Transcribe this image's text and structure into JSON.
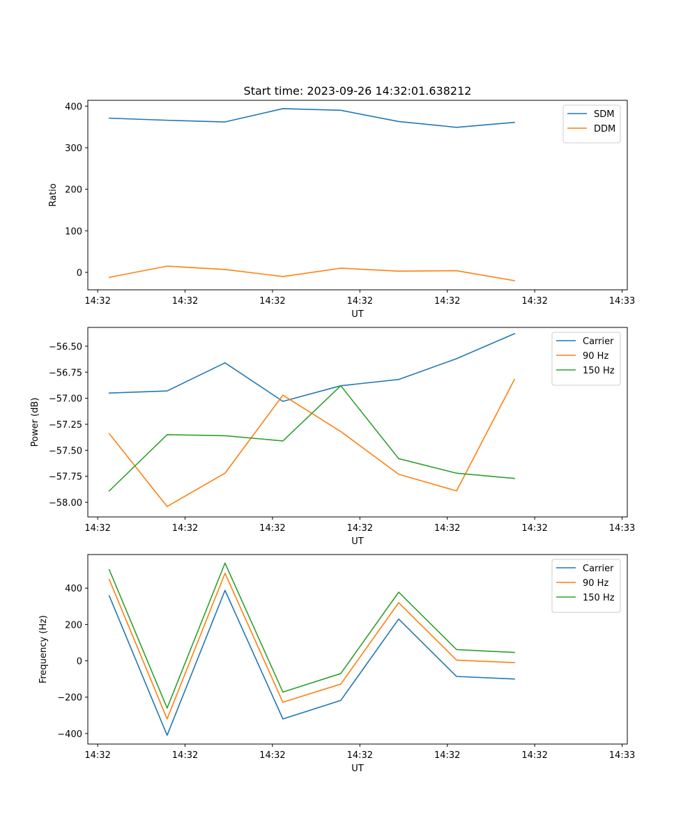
{
  "figure": {
    "title": "Start time: 2023-09-26 14:32:01.638212",
    "colors": {
      "blue": "#1f77b4",
      "orange": "#ff7f0e",
      "green": "#2ca02c"
    }
  },
  "chart_data": [
    {
      "type": "line",
      "title": "Start time: 2023-09-26 14:32:01.638212",
      "xlabel": "UT",
      "ylabel": "Ratio",
      "xlim": [
        -0.37,
        8.95
      ],
      "ylim": [
        -42,
        414
      ],
      "x_ticks": [
        {
          "x": -0.2,
          "label": "14:32"
        },
        {
          "x": 1.31,
          "label": "14:32"
        },
        {
          "x": 2.82,
          "label": "14:32"
        },
        {
          "x": 4.33,
          "label": "14:32"
        },
        {
          "x": 5.84,
          "label": "14:32"
        },
        {
          "x": 7.35,
          "label": "14:32"
        },
        {
          "x": 8.86,
          "label": "14:33"
        }
      ],
      "y_ticks": [
        0,
        100,
        200,
        300,
        400
      ],
      "y_tick_labels": [
        "0",
        "100",
        "200",
        "300",
        "400"
      ],
      "x": [
        0,
        1,
        2,
        3,
        4,
        5,
        6,
        7
      ],
      "legend": "top-right",
      "series": [
        {
          "name": "SDM",
          "color": "#1f77b4",
          "values": [
            371,
            366,
            362,
            394,
            390,
            363,
            349,
            361
          ]
        },
        {
          "name": "DDM",
          "color": "#ff7f0e",
          "values": [
            -12,
            15,
            7,
            -10,
            10,
            3,
            4,
            -20
          ]
        }
      ]
    },
    {
      "type": "line",
      "title": "",
      "xlabel": "UT",
      "ylabel": "Power (dB)",
      "xlim": [
        -0.37,
        8.95
      ],
      "ylim": [
        -58.14,
        -56.32
      ],
      "x_ticks": [
        {
          "x": -0.2,
          "label": "14:32"
        },
        {
          "x": 1.31,
          "label": "14:32"
        },
        {
          "x": 2.82,
          "label": "14:32"
        },
        {
          "x": 4.33,
          "label": "14:32"
        },
        {
          "x": 5.84,
          "label": "14:32"
        },
        {
          "x": 7.35,
          "label": "14:32"
        },
        {
          "x": 8.86,
          "label": "14:33"
        }
      ],
      "y_ticks": [
        -58.0,
        -57.75,
        -57.5,
        -57.25,
        -57.0,
        -56.75,
        -56.5
      ],
      "y_tick_labels": [
        "−58.00",
        "−57.75",
        "−57.50",
        "−57.25",
        "−57.00",
        "−56.75",
        "−56.50"
      ],
      "x": [
        0,
        1,
        2,
        3,
        4,
        5,
        6,
        7
      ],
      "legend": "top-right",
      "series": [
        {
          "name": "Carrier",
          "color": "#1f77b4",
          "values": [
            -56.95,
            -56.93,
            -56.66,
            -57.03,
            -56.88,
            -56.82,
            -56.62,
            -56.38
          ]
        },
        {
          "name": "90 Hz",
          "color": "#ff7f0e",
          "values": [
            -57.34,
            -58.04,
            -57.72,
            -56.97,
            -57.32,
            -57.73,
            -57.89,
            -56.82
          ]
        },
        {
          "name": "150 Hz",
          "color": "#2ca02c",
          "values": [
            -57.89,
            -57.35,
            -57.36,
            -57.41,
            -56.88,
            -57.58,
            -57.72,
            -57.77
          ]
        }
      ]
    },
    {
      "type": "line",
      "title": "",
      "xlabel": "UT",
      "ylabel": "Frequency (Hz)",
      "xlim": [
        -0.37,
        8.95
      ],
      "ylim": [
        -458,
        585
      ],
      "x_ticks": [
        {
          "x": -0.2,
          "label": "14:32"
        },
        {
          "x": 1.31,
          "label": "14:32"
        },
        {
          "x": 2.82,
          "label": "14:32"
        },
        {
          "x": 4.33,
          "label": "14:32"
        },
        {
          "x": 5.84,
          "label": "14:32"
        },
        {
          "x": 7.35,
          "label": "14:32"
        },
        {
          "x": 8.86,
          "label": "14:33"
        }
      ],
      "y_ticks": [
        -400,
        -200,
        0,
        200,
        400
      ],
      "y_tick_labels": [
        "−400",
        "−200",
        "0",
        "200",
        "400"
      ],
      "x": [
        0,
        1,
        2,
        3,
        4,
        5,
        6,
        7
      ],
      "legend": "top-right",
      "series": [
        {
          "name": "Carrier",
          "color": "#1f77b4",
          "values": [
            358,
            -410,
            388,
            -320,
            -218,
            230,
            -86,
            -100
          ]
        },
        {
          "name": "90 Hz",
          "color": "#ff7f0e",
          "values": [
            448,
            -320,
            482,
            -228,
            -128,
            320,
            4,
            -10
          ]
        },
        {
          "name": "150 Hz",
          "color": "#2ca02c",
          "values": [
            502,
            -260,
            538,
            -172,
            -70,
            378,
            62,
            46
          ]
        }
      ]
    }
  ]
}
